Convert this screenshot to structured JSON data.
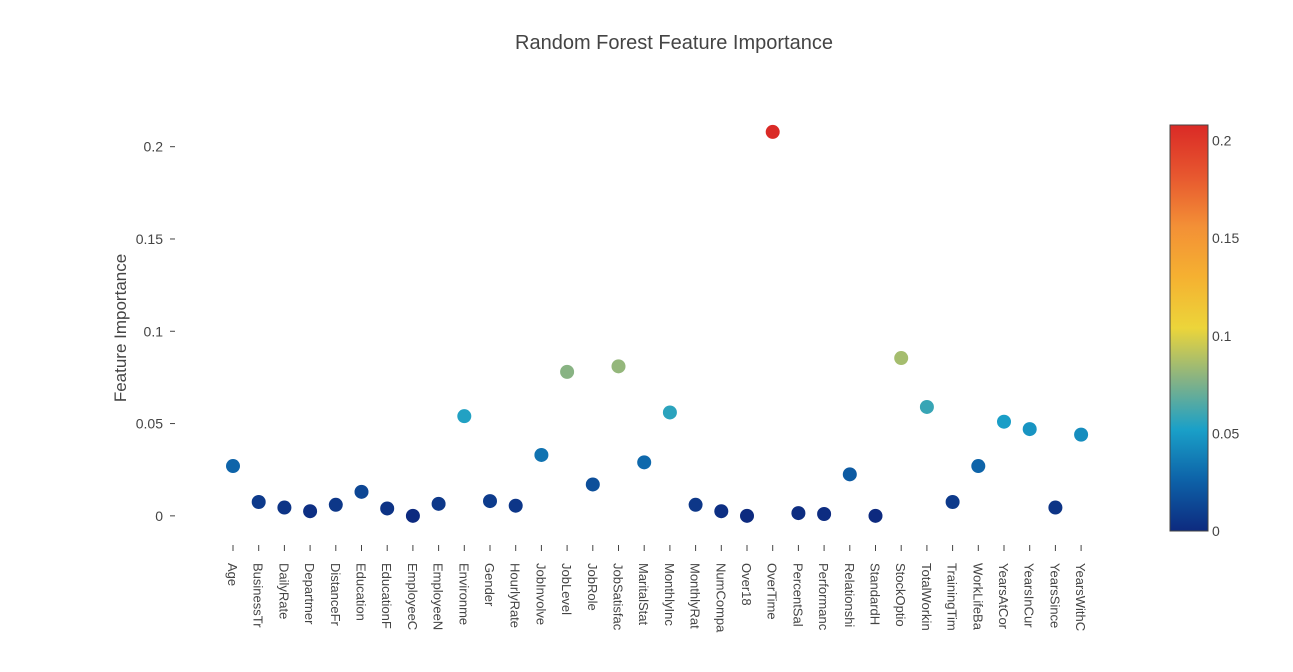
{
  "chart_data": {
    "type": "scatter",
    "title": "Random Forest Feature Importance",
    "xlabel": "",
    "ylabel": "Feature Importance",
    "ylim": [
      -0.012,
      0.228
    ],
    "yticks": [
      0,
      0.05,
      0.1,
      0.15,
      0.2
    ],
    "ytick_labels": [
      "0",
      "0.05",
      "0.1",
      "0.15",
      "0.2"
    ],
    "grid": false,
    "categories": [
      "Age",
      "BusinessTr",
      "DailyRate",
      "Departmer",
      "DistanceFr",
      "Education",
      "EducationF",
      "EmployeeC",
      "EmployeeN",
      "Environme",
      "Gender",
      "HourlyRate",
      "JobInvolve",
      "JobLevel",
      "JobRole",
      "JobSatisfac",
      "MaritalStat",
      "MonthlyInc",
      "MonthlyRat",
      "NumCompa",
      "Over18",
      "OverTime",
      "PercentSal",
      "Performanc",
      "Relationshi",
      "StandardH",
      "StockOptio",
      "TotalWorkin",
      "TrainingTim",
      "WorkLifeBa",
      "YearsAtCor",
      "YearsInCur",
      "YearsSince",
      "YearsWithC"
    ],
    "values": [
      0.027,
      0.0075,
      0.0045,
      0.0025,
      0.006,
      0.013,
      0.004,
      0.0,
      0.0065,
      0.054,
      0.008,
      0.0055,
      0.033,
      0.078,
      0.017,
      0.081,
      0.029,
      0.056,
      0.006,
      0.0025,
      0.0,
      0.208,
      0.0015,
      0.001,
      0.0225,
      0.0,
      0.0855,
      0.059,
      0.0075,
      0.027,
      0.051,
      0.047,
      0.0045,
      0.044
    ],
    "colorbar": {
      "min": 0,
      "max": 0.208,
      "ticks": [
        0,
        0.05,
        0.1,
        0.15,
        0.2
      ],
      "tick_labels": [
        "0",
        "0.05",
        "0.1",
        "0.15",
        "0.2"
      ],
      "colorscale": [
        "#0d2a7f",
        "#0d62a8",
        "#1aa0c8",
        "#88b383",
        "#ecd53a",
        "#f5b131",
        "#f39036",
        "#e7572f",
        "#da2a26"
      ]
    }
  }
}
